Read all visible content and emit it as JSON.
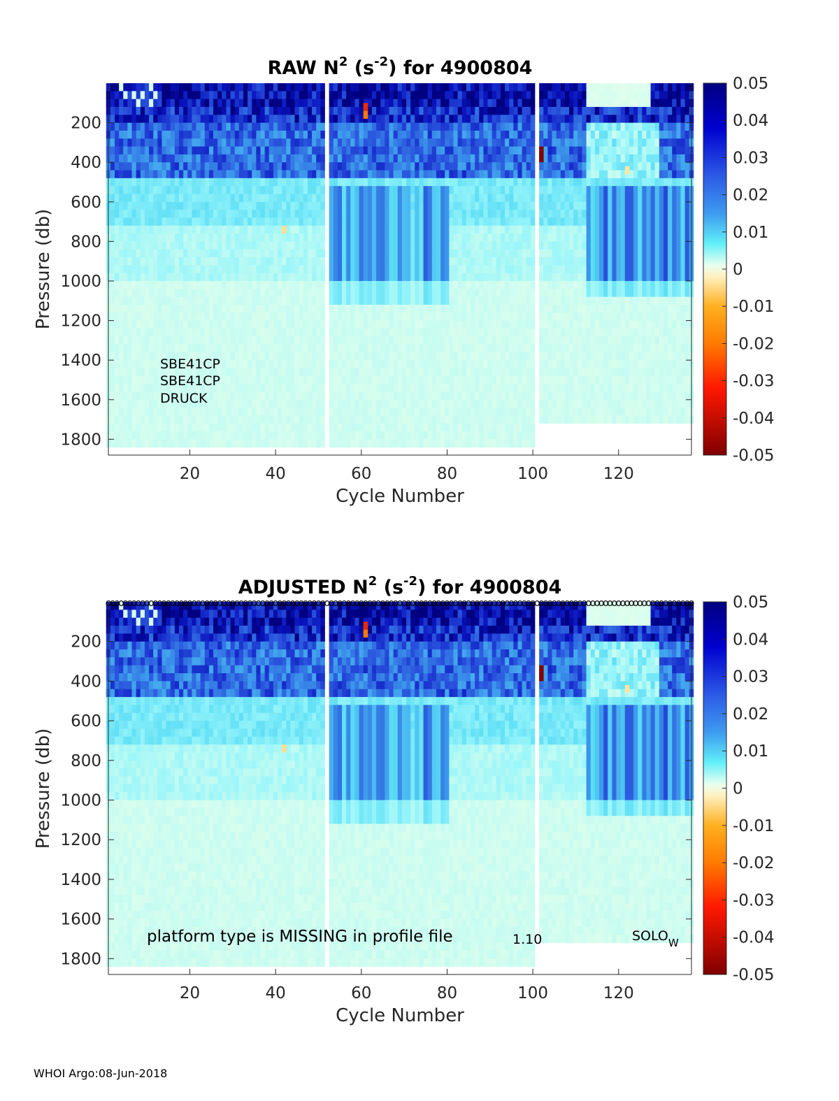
{
  "footer": "WHOI Argo:08-Jun-2018",
  "chart_data": [
    {
      "type": "heatmap",
      "title_main": "RAW N",
      "title_sup": "2",
      "title_unit_open": " (s",
      "title_unit_sup": "-2",
      "title_rest": ") for 4900804",
      "xlabel": "Cycle Number",
      "ylabel": "Pressure (db)",
      "xlim": [
        1,
        137
      ],
      "ylim": [
        1880,
        0
      ],
      "xticks": [
        "20",
        "40",
        "60",
        "80",
        "100",
        "120"
      ],
      "yticks": [
        "200",
        "400",
        "600",
        "800",
        "1000",
        "1200",
        "1400",
        "1600",
        "1800"
      ],
      "colorbar_ticks": [
        "0.05",
        "0.04",
        "0.03",
        "0.02",
        "0.01",
        "0",
        "-0.01",
        "-0.02",
        "-0.03",
        "-0.04",
        "-0.05"
      ],
      "clim": [
        -0.05,
        0.05
      ],
      "sensors": [
        "SBE41CP",
        "SBE41CP",
        "DRUCK"
      ],
      "missing_cycles": [
        52,
        101
      ],
      "max_pressure_after_cycle_102": 1700
    },
    {
      "type": "heatmap",
      "title_main": "ADJUSTED N",
      "title_sup": "2",
      "title_unit_open": " (s",
      "title_unit_sup": "-2",
      "title_rest": ") for 4900804",
      "xlabel": "Cycle Number",
      "ylabel": "Pressure (db)",
      "xlim": [
        1,
        137
      ],
      "ylim": [
        1880,
        0
      ],
      "xticks": [
        "20",
        "40",
        "60",
        "80",
        "100",
        "120"
      ],
      "yticks": [
        "200",
        "400",
        "600",
        "800",
        "1000",
        "1200",
        "1400",
        "1600",
        "1800"
      ],
      "colorbar_ticks": [
        "0.05",
        "0.04",
        "0.03",
        "0.02",
        "0.01",
        "0",
        "-0.01",
        "-0.02",
        "-0.03",
        "-0.04",
        "-0.05"
      ],
      "clim": [
        -0.05,
        0.05
      ],
      "qc_marker": "o",
      "platform_note": "platform type is MISSING in profile file",
      "version": "1.10",
      "platform": "SOLO",
      "platform_sub": "W",
      "missing_cycles": [
        52,
        101
      ],
      "max_pressure_after_cycle_102": 1700
    }
  ]
}
